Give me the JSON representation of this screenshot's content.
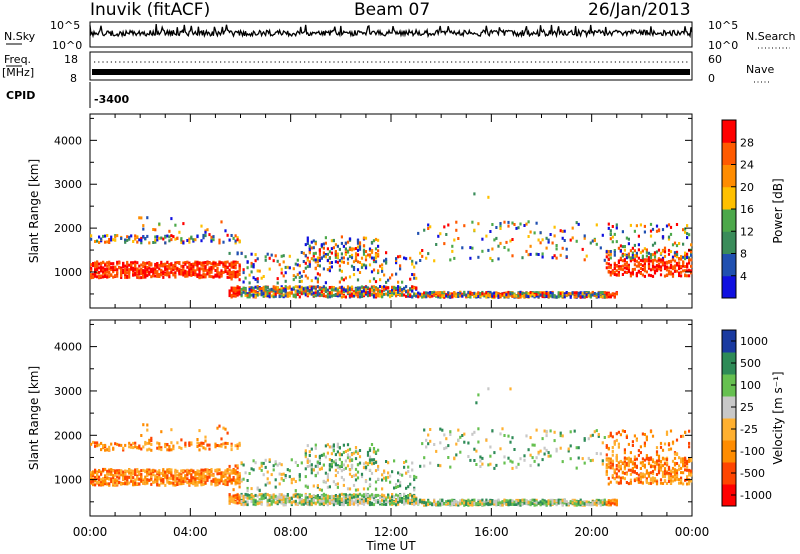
{
  "header": {
    "station": "Inuvik (fitACF)",
    "beam": "Beam 07",
    "date": "26/Jan/2013"
  },
  "summary_panels": {
    "nsky_label": "N.Sky",
    "nsearch_label": "N.Search",
    "nsky_ticks": [
      "10^5",
      "10^0"
    ],
    "nsearch_ticks": [
      "10^5",
      "10^0"
    ],
    "freq_label": "Freq.",
    "freq_unit": "[MHz]",
    "freq_ticks": [
      "18",
      "8"
    ],
    "nave_label": "Nave",
    "nave_ticks": [
      "60",
      "0"
    ],
    "cpid_label": "CPID",
    "cpid_value": "-3400"
  },
  "colors": {
    "power_scale": [
      "#1010e0",
      "#2050b0",
      "#3a8c5a",
      "#4ca84a",
      "#ffc000",
      "#ff8c00",
      "#ff5a00",
      "#ff0000"
    ],
    "velocity_scale": [
      "#ff0000",
      "#ff4500",
      "#ff8c00",
      "#ffb030",
      "#c8c8c8",
      "#66c050",
      "#2e8b57",
      "#1a3aa0"
    ]
  },
  "chart_data": [
    {
      "type": "heatmap",
      "title": "",
      "xlabel": "",
      "ylabel": "Slant Range [km]",
      "x_ticks": [
        "00:00",
        "04:00",
        "08:00",
        "12:00",
        "16:00",
        "20:00",
        "00:00"
      ],
      "y_ticks": [
        1000,
        2000,
        3000,
        4000
      ],
      "xlim": [
        0,
        24
      ],
      "ylim": [
        180,
        4600
      ],
      "colorbar_label": "Power [dB]",
      "colorbar_ticks": [
        4,
        8,
        12,
        16,
        20,
        24,
        28
      ],
      "colorbar_range": [
        0,
        32
      ]
    },
    {
      "type": "heatmap",
      "title": "",
      "xlabel": "Time UT",
      "ylabel": "Slant Range [km]",
      "x_ticks": [
        "00:00",
        "04:00",
        "08:00",
        "12:00",
        "16:00",
        "20:00",
        "00:00"
      ],
      "y_ticks": [
        1000,
        2000,
        3000,
        4000
      ],
      "xlim": [
        0,
        24
      ],
      "ylim": [
        180,
        4600
      ],
      "colorbar_label": "Velocity [m s⁻¹]",
      "colorbar_ticks": [
        "1000",
        "500",
        "100",
        "25",
        "-25",
        "-100",
        "-500",
        "-1000"
      ]
    }
  ]
}
